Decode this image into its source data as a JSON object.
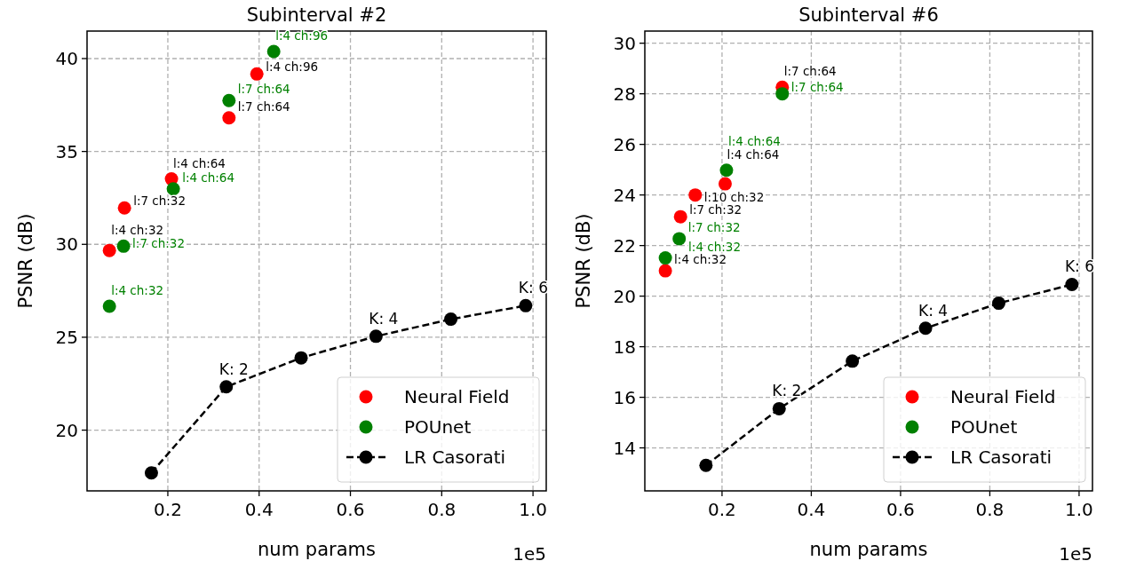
{
  "chart_data": [
    {
      "type": "scatter",
      "title": "Subinterval #2",
      "xlabel": "num params",
      "ylabel": "PSNR (dB)",
      "xlim": [
        0.023,
        1.029
      ],
      "ylim": [
        16.73,
        41.48
      ],
      "xticks": [
        0.2,
        0.4,
        0.6,
        0.8,
        {
          "value": 1,
          "label": "1.0"
        }
      ],
      "yticks": [
        20,
        25,
        30,
        35,
        40
      ],
      "grid": true,
      "legend": "bottom right",
      "marker": "circle",
      "series": [
        {
          "name": "Neural Field",
          "color": "#ff0000",
          "x": [
            0.072,
            0.105,
            0.208,
            0.334,
            0.395
          ],
          "values": [
            29.67,
            31.96,
            33.52,
            36.81,
            39.17
          ]
        },
        {
          "name": "POUnet",
          "color": "#008000",
          "x": [
            0.072,
            0.103,
            0.212,
            0.334,
            0.432
          ],
          "values": [
            26.67,
            29.9,
            32.99,
            37.74,
            40.38
          ]
        },
        {
          "name": "LR Casorati",
          "type": "line",
          "line_style": "dashed",
          "color": "#000000",
          "x": [
            0.164,
            0.328,
            0.492,
            0.656,
            0.82,
            0.984
          ],
          "values": [
            17.7,
            22.33,
            23.89,
            25.05,
            25.97,
            26.7
          ]
        }
      ],
      "annotations": [
        {
          "text": "l:4 ch:32",
          "x": 0.072,
          "y": 29.67
        },
        {
          "text": "l:7 ch:32",
          "x": 0.105,
          "y": 31.96
        },
        {
          "text": "l:4 ch:64",
          "x": 0.208,
          "y": 33.52
        },
        {
          "text": "l:7 ch:64",
          "x": 0.334,
          "y": 36.81
        },
        {
          "text": "l:4 ch:96",
          "x": 0.395,
          "y": 39.17
        },
        {
          "text": "l:4 ch:32",
          "x": 0.072,
          "y": 26.67
        },
        {
          "text": "l:7 ch:32",
          "x": 0.103,
          "y": 29.9
        },
        {
          "text": "l:4 ch:64",
          "x": 0.212,
          "y": 32.99
        },
        {
          "text": "l:7 ch:64",
          "x": 0.334,
          "y": 37.74
        },
        {
          "text": "l:4 ch:96",
          "x": 0.432,
          "y": 40.38
        },
        {
          "text": "K: 2",
          "x": 0.328,
          "y": 22.33
        },
        {
          "text": "K: 4",
          "x": 0.656,
          "y": 25.05
        },
        {
          "text": "K: 6",
          "x": 0.984,
          "y": 26.7
        },
        "1e5"
      ]
    },
    {
      "type": "scatter",
      "title": "Subinterval #6",
      "xlabel": "num params",
      "ylabel": "PSNR (dB)",
      "xlim": [
        0.027,
        1.03
      ],
      "ylim": [
        12.3,
        30.48
      ],
      "xticks": [
        0.2,
        0.4,
        0.6,
        0.8,
        {
          "value": 1,
          "label": "1.0"
        }
      ],
      "yticks": [
        14,
        16,
        18,
        20,
        22,
        24,
        26,
        28,
        30
      ],
      "grid": true,
      "legend": "bottom right",
      "marker": "circle",
      "series": [
        {
          "name": "Neural Field",
          "color": "#ff0000",
          "x": [
            0.073,
            0.107,
            0.14,
            0.207,
            0.335
          ],
          "values": [
            21.0,
            23.14,
            24.0,
            24.44,
            28.26
          ]
        },
        {
          "name": "POUnet",
          "color": "#008000",
          "x": [
            0.073,
            0.104,
            0.21,
            0.335
          ],
          "values": [
            21.51,
            22.27,
            24.98,
            28.0
          ]
        },
        {
          "name": "LR Casorati",
          "type": "line",
          "line_style": "dashed",
          "color": "#000000",
          "x": [
            0.164,
            0.328,
            0.492,
            0.656,
            0.82,
            0.984
          ],
          "values": [
            13.31,
            15.55,
            17.43,
            18.73,
            19.72,
            20.46
          ]
        }
      ],
      "annotations": [
        {
          "text": "l:4 ch:32",
          "x": 0.073,
          "y": 21.0
        },
        {
          "text": "l:7 ch:32",
          "x": 0.107,
          "y": 23.14
        },
        {
          "text": "l:10 ch:32",
          "x": 0.14,
          "y": 24.0
        },
        {
          "text": "l:4 ch:64",
          "x": 0.207,
          "y": 24.44
        },
        {
          "text": "l:7 ch:64",
          "x": 0.335,
          "y": 28.26
        },
        {
          "text": "l:4 ch:32",
          "x": 0.073,
          "y": 21.51
        },
        {
          "text": "l:7 ch:32",
          "x": 0.104,
          "y": 22.27
        },
        {
          "text": "l:4 ch:64",
          "x": 0.21,
          "y": 24.98
        },
        {
          "text": "l:7 ch:64",
          "x": 0.335,
          "y": 28.0
        },
        {
          "text": "K: 2",
          "x": 0.328,
          "y": 15.55
        },
        {
          "text": "K: 4",
          "x": 0.656,
          "y": 18.73
        },
        {
          "text": "K: 6",
          "x": 0.984,
          "y": 20.46
        },
        "1e5"
      ]
    }
  ]
}
